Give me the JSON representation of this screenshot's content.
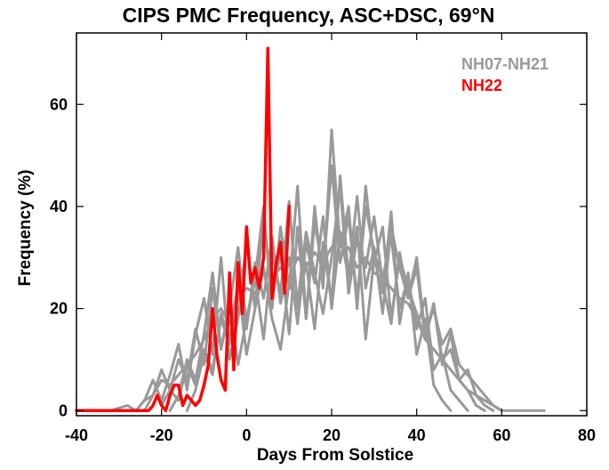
{
  "chart_data": {
    "type": "line",
    "title": "CIPS PMC Frequency, ASC+DSC, 69°N",
    "xlabel": "Days From Solstice",
    "ylabel": "Frequency (%)",
    "xlim": [
      -40,
      80
    ],
    "ylim": [
      -1,
      74
    ],
    "xticks": [
      -40,
      -20,
      0,
      20,
      40,
      60,
      80
    ],
    "yticks": [
      0,
      20,
      40,
      60
    ],
    "grid": false,
    "legend_position": "top-right",
    "legend": [
      {
        "label": "NH07-NH21",
        "color": "#999999"
      },
      {
        "label": "NH22",
        "color": "#ff0000"
      }
    ],
    "series": [
      {
        "name": "NH07-NH21",
        "color": "#999999",
        "line_width": 3,
        "x": [
          -40,
          -36,
          -32,
          -28,
          -26,
          -24,
          -22,
          -20,
          -18,
          -16,
          -14,
          -12,
          -10,
          -8,
          -6,
          -4,
          -2,
          0,
          2,
          4,
          6,
          8,
          10,
          12,
          14,
          16,
          18,
          20,
          22,
          24,
          26,
          28,
          30,
          32,
          34,
          36,
          38,
          40,
          42,
          44,
          46,
          48,
          50,
          52,
          54,
          56,
          58,
          60,
          64,
          68,
          70
        ],
        "values": [
          0,
          0,
          0,
          1,
          0,
          2,
          3,
          6,
          5,
          7,
          9,
          11,
          14,
          18,
          20,
          17,
          22,
          24,
          23,
          27,
          26,
          28,
          26,
          30,
          28,
          31,
          29,
          32,
          30,
          32,
          28,
          30,
          27,
          26,
          24,
          22,
          21,
          18,
          14,
          12,
          10,
          8,
          6,
          4,
          3,
          2,
          1,
          0,
          0,
          0,
          0
        ]
      },
      {
        "name": "NH07-NH21",
        "color": "#999999",
        "line_width": 3,
        "x": [
          -30,
          -26,
          -24,
          -22,
          -20,
          -18,
          -16,
          -14,
          -12,
          -10,
          -8,
          -6,
          -4,
          -2,
          0,
          2,
          4,
          6,
          8,
          10,
          12,
          14,
          16,
          18,
          20,
          22,
          24,
          26,
          28,
          30,
          32,
          34,
          36,
          38,
          40,
          42,
          44,
          46,
          48,
          50,
          52,
          54,
          56
        ],
        "values": [
          0,
          0,
          2,
          6,
          2,
          7,
          13,
          4,
          15,
          22,
          11,
          30,
          10,
          18,
          33,
          20,
          38,
          22,
          31,
          15,
          36,
          18,
          40,
          24,
          55,
          32,
          40,
          20,
          44,
          29,
          36,
          18,
          30,
          24,
          19,
          14,
          21,
          10,
          12,
          6,
          4,
          1,
          0
        ]
      },
      {
        "name": "NH07-NH21",
        "color": "#999999",
        "line_width": 3,
        "x": [
          -24,
          -22,
          -20,
          -18,
          -16,
          -14,
          -12,
          -10,
          -8,
          -6,
          -4,
          -2,
          0,
          2,
          4,
          6,
          8,
          10,
          12,
          14,
          16,
          18,
          20,
          22,
          24,
          26,
          28,
          30,
          32,
          34,
          36,
          38,
          40,
          42,
          44,
          46,
          48,
          50,
          52
        ],
        "values": [
          0,
          3,
          8,
          4,
          10,
          6,
          16,
          9,
          24,
          12,
          20,
          32,
          17,
          26,
          40,
          20,
          36,
          24,
          44,
          18,
          37,
          27,
          48,
          29,
          38,
          22,
          40,
          31,
          26,
          34,
          20,
          26,
          16,
          22,
          8,
          11,
          4,
          2,
          0
        ]
      },
      {
        "name": "NH07-NH21",
        "color": "#999999",
        "line_width": 3,
        "x": [
          -20,
          -18,
          -16,
          -14,
          -12,
          -10,
          -8,
          -6,
          -4,
          -2,
          0,
          2,
          4,
          6,
          8,
          10,
          12,
          14,
          16,
          18,
          20,
          22,
          24,
          26,
          28,
          30,
          32,
          34,
          36,
          38,
          40,
          42,
          44,
          46,
          48,
          50,
          52,
          54,
          56,
          58,
          60
        ],
        "values": [
          1,
          4,
          2,
          9,
          5,
          12,
          8,
          18,
          13,
          24,
          16,
          29,
          22,
          34,
          21,
          30,
          17,
          33,
          25,
          38,
          20,
          35,
          26,
          42,
          24,
          32,
          19,
          36,
          28,
          22,
          30,
          15,
          20,
          13,
          16,
          9,
          7,
          5,
          3,
          1,
          0
        ]
      },
      {
        "name": "NH07-NH21",
        "color": "#999999",
        "line_width": 3,
        "x": [
          -18,
          -16,
          -14,
          -12,
          -10,
          -8,
          -6,
          -4,
          -2,
          0,
          2,
          4,
          6,
          8,
          10,
          12,
          14,
          16,
          18,
          20,
          22,
          24,
          26,
          28,
          30,
          32,
          34,
          36,
          38,
          40,
          42,
          44,
          46,
          48
        ],
        "values": [
          0,
          3,
          10,
          6,
          15,
          27,
          12,
          21,
          9,
          18,
          26,
          14,
          31,
          23,
          41,
          20,
          29,
          16,
          33,
          21,
          46,
          26,
          36,
          14,
          30,
          23,
          39,
          17,
          27,
          11,
          18,
          5,
          2,
          0
        ]
      },
      {
        "name": "NH07-NH21",
        "color": "#999999",
        "line_width": 3,
        "x": [
          -14,
          -12,
          -10,
          -8,
          -6,
          -4,
          -2,
          0,
          2,
          4,
          6,
          8,
          10,
          12,
          14,
          16,
          18,
          20,
          22,
          24,
          26,
          28,
          30,
          32,
          34,
          36,
          38,
          40,
          42,
          44,
          46,
          48,
          50,
          52,
          54,
          56,
          58
        ],
        "values": [
          0,
          4,
          11,
          7,
          19,
          14,
          25,
          11,
          20,
          28,
          18,
          12,
          25,
          21,
          35,
          27,
          19,
          30,
          44,
          23,
          34,
          28,
          38,
          25,
          17,
          31,
          22,
          28,
          14,
          21,
          9,
          15,
          6,
          8,
          3,
          1,
          0
        ]
      },
      {
        "name": "NH22",
        "color": "#ff0000",
        "line_width": 3.5,
        "x": [
          -40,
          -30,
          -24,
          -23,
          -22,
          -21,
          -20,
          -19,
          -18,
          -17,
          -16,
          -15,
          -14,
          -13,
          -12,
          -11,
          -10,
          -9,
          -8,
          -7,
          -6,
          -5,
          -4,
          -3,
          -2,
          -1,
          0,
          1,
          2,
          3,
          4,
          5,
          6,
          7,
          8,
          9,
          10
        ],
        "values": [
          0,
          0,
          0,
          0,
          1,
          3,
          1,
          0,
          3,
          5,
          5,
          1,
          3,
          2,
          1,
          2,
          5,
          9,
          20,
          11,
          6,
          4,
          27,
          8,
          29,
          19,
          36,
          25,
          28,
          24,
          30,
          71,
          22,
          29,
          33,
          23,
          40
        ]
      }
    ]
  }
}
